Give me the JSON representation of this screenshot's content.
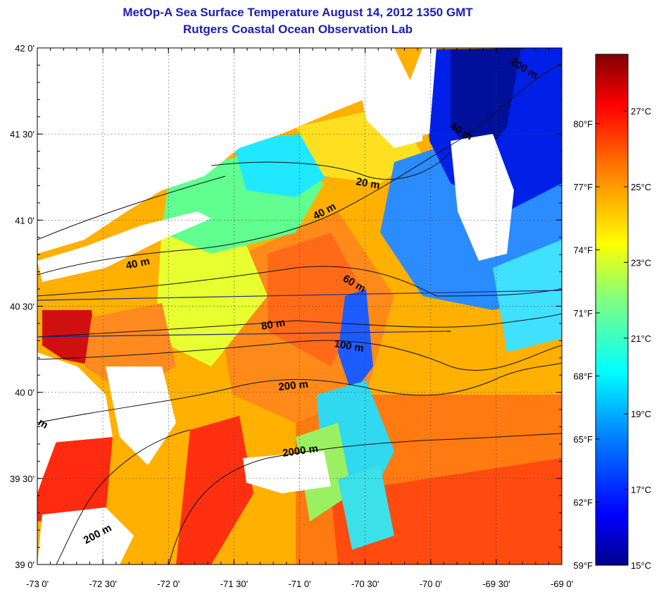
{
  "title": "MetOp-A Sea Surface Temperature August 14, 2012 1350 GMT",
  "subtitle": "Rutgers Coastal Ocean Observation Lab",
  "map": {
    "lon_ticks": [
      "-73 0'",
      "-72 30'",
      "-72 0'",
      "-71 30'",
      "-71 0'",
      "-70 30'",
      "-70 0'",
      "-69 30'",
      "-69 0'"
    ],
    "lat_ticks": [
      "42 0'",
      "41 30'",
      "41 0'",
      "40 30'",
      "40 0'",
      "39 30'",
      "39 0'"
    ],
    "lon_range": [
      -73,
      -69
    ],
    "lat_range": [
      39,
      42
    ],
    "grid": true,
    "isobath_labels": [
      "20 m",
      "40 m",
      "40 m",
      "40 m",
      "60 m",
      "80 m",
      "100 m",
      "200 m",
      "200 m",
      "200 m",
      "2000 m",
      "m"
    ]
  },
  "colorbar": {
    "celsius_labels": [
      "27°C",
      "25°C",
      "23°C",
      "21°C",
      "19°C",
      "17°C",
      "15°C"
    ],
    "fahrenheit_labels": [
      "80°F",
      "77°F",
      "74°F",
      "71°F",
      "68°F",
      "65°F",
      "62°F",
      "59°F"
    ],
    "min_c": 15,
    "max_c": 28.5,
    "colors": [
      "#00008f",
      "#0000ff",
      "#0080ff",
      "#00ffff",
      "#80ff80",
      "#ffff00",
      "#ff8000",
      "#ff0000",
      "#800000"
    ]
  }
}
